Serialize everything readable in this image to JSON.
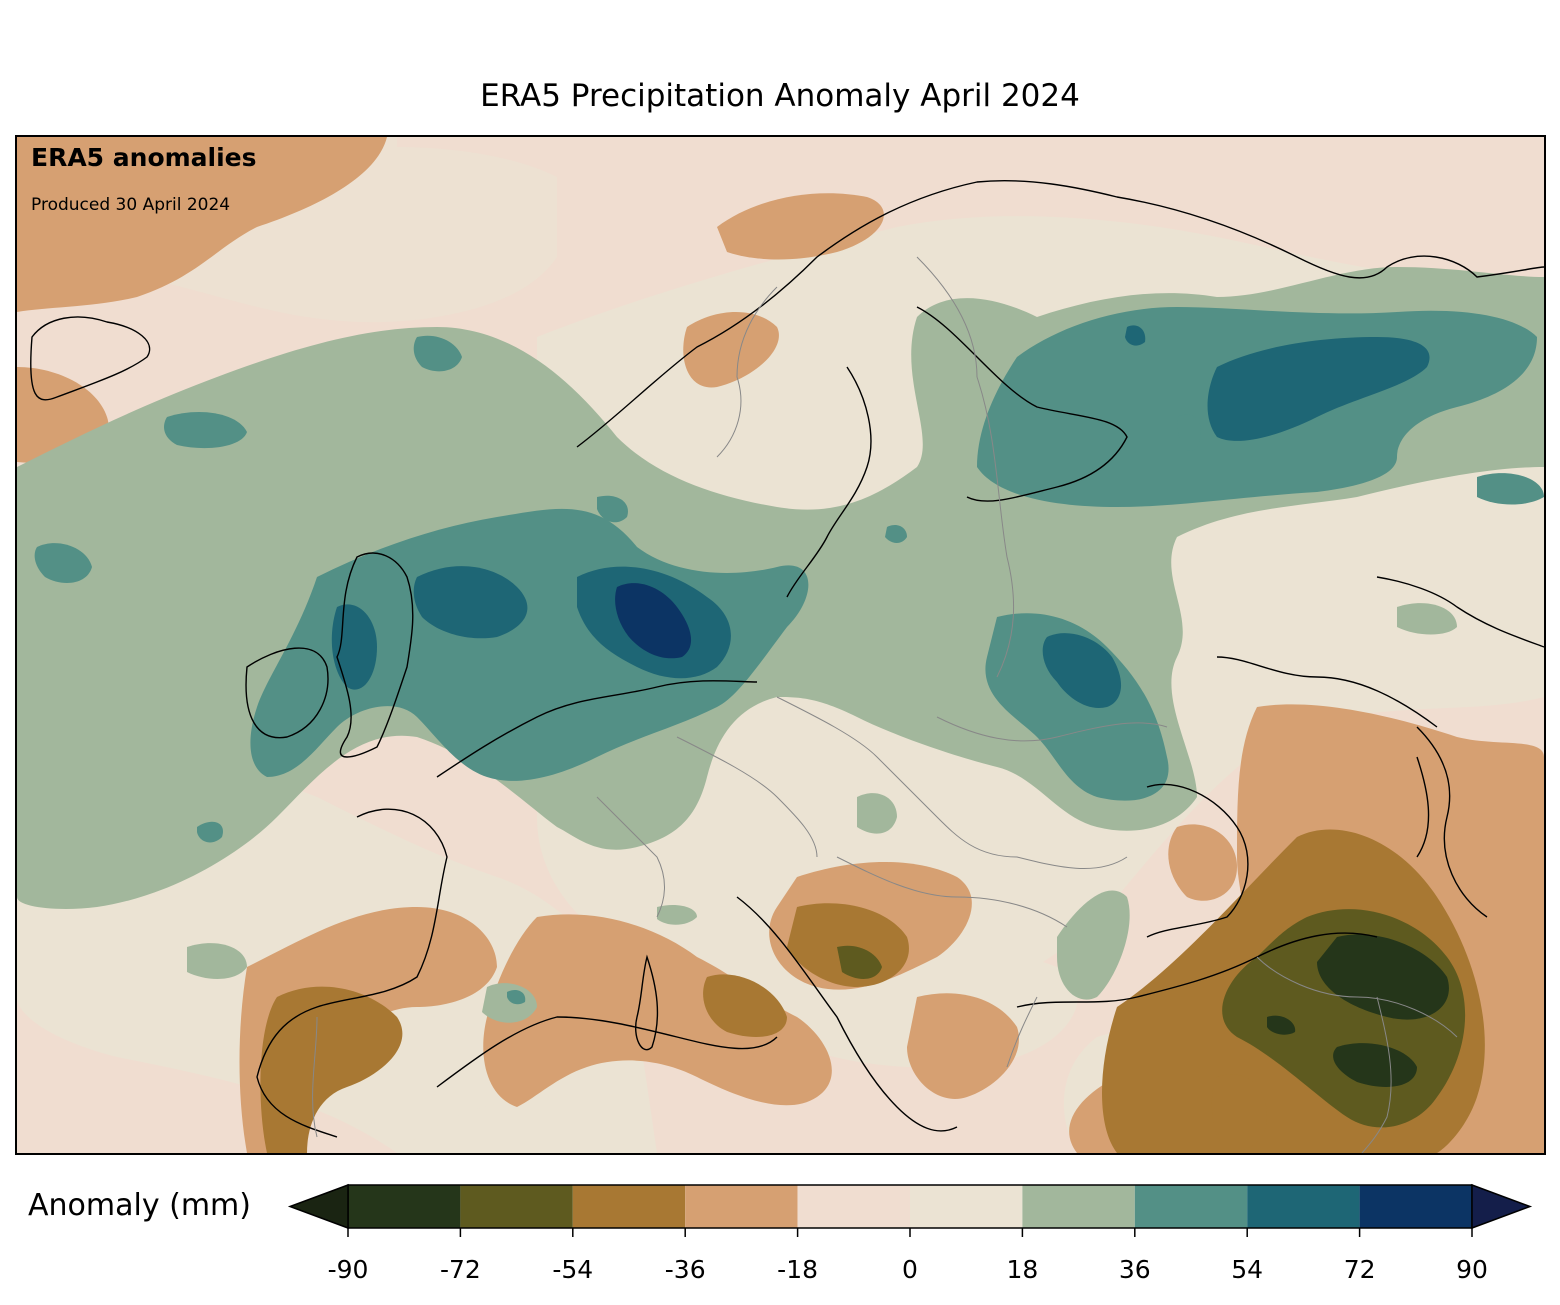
{
  "title": "ERA5 Precipitation Anomaly April 2024",
  "map": {
    "heading": "ERA5 anomalies",
    "subheading": "Produced 30 April 2024",
    "region": "Europe"
  },
  "colorbar": {
    "label": "Anomaly (mm)",
    "ticks": [
      "-90",
      "-72",
      "-54",
      "-36",
      "-18",
      "0",
      "18",
      "36",
      "54",
      "72",
      "90"
    ],
    "bins": [
      {
        "from": -90,
        "to": -72,
        "color": "#25361a"
      },
      {
        "from": -72,
        "to": -54,
        "color": "#5e5a1f"
      },
      {
        "from": -54,
        "to": -36,
        "color": "#a87833"
      },
      {
        "from": -36,
        "to": -18,
        "color": "#d6a072"
      },
      {
        "from": -18,
        "to": 0,
        "color": "#f0ddd0"
      },
      {
        "from": 0,
        "to": 18,
        "color": "#ebe3d3"
      },
      {
        "from": 18,
        "to": 36,
        "color": "#a2b79c"
      },
      {
        "from": 36,
        "to": 54,
        "color": "#539086"
      },
      {
        "from": 54,
        "to": 72,
        "color": "#1e6675"
      },
      {
        "from": 72,
        "to": 90,
        "color": "#0c3464"
      }
    ],
    "under_color": "#1a2412",
    "over_color": "#141e4a"
  }
}
